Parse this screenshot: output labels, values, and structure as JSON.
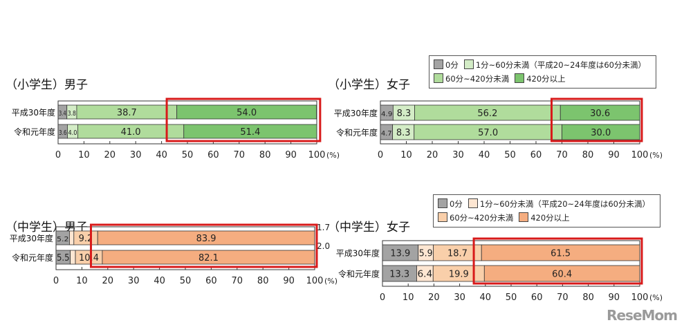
{
  "chart_data": [
    {
      "type": "bar",
      "orientation": "horizontal",
      "stacked": true,
      "title": "（小学生）男子",
      "categories": [
        "平成30年度",
        "令和元年度"
      ],
      "series": [
        {
          "name": "0分",
          "values": [
            3.4,
            3.6
          ]
        },
        {
          "name": "1分~60分未満",
          "values": [
            3.8,
            4.0
          ]
        },
        {
          "name": "60分~420分未満",
          "values": [
            38.7,
            41.0
          ]
        },
        {
          "name": "420分以上",
          "values": [
            54.0,
            51.4
          ]
        }
      ],
      "colors": [
        "#a3a3a3",
        "#d3ecc6",
        "#b0dc9c",
        "#7cc46e"
      ],
      "xlim": [
        0,
        100
      ],
      "xticks": [
        0,
        10,
        20,
        30,
        40,
        50,
        60,
        70,
        80,
        90,
        100
      ],
      "xunit": "(%)",
      "highlight_range": [
        42,
        100.5
      ],
      "legend": null
    },
    {
      "type": "bar",
      "orientation": "horizontal",
      "stacked": true,
      "title": "（小学生）女子",
      "categories": [
        "平成30年度",
        "令和元年度"
      ],
      "series": [
        {
          "name": "0分",
          "values": [
            4.9,
            4.7
          ]
        },
        {
          "name": "1分~60分未満",
          "values": [
            8.3,
            8.3
          ]
        },
        {
          "name": "60分~420分未満",
          "values": [
            56.2,
            57.0
          ]
        },
        {
          "name": "420分以上",
          "values": [
            30.6,
            30.0
          ]
        }
      ],
      "colors": [
        "#a3a3a3",
        "#d3ecc6",
        "#b0dc9c",
        "#7cc46e"
      ],
      "xlim": [
        0,
        100
      ],
      "xticks": [
        0,
        10,
        20,
        30,
        40,
        50,
        60,
        70,
        80,
        90,
        100
      ],
      "xunit": "(%)",
      "highlight_range": [
        66,
        100
      ],
      "legend": [
        "0分",
        "1分~60分未満（平成20~24年度は60分未満）",
        "60分~420分未満",
        "420分以上"
      ]
    },
    {
      "type": "bar",
      "orientation": "horizontal",
      "stacked": true,
      "title": "（中学生）男子",
      "categories": [
        "平成30年度",
        "令和元年度"
      ],
      "series": [
        {
          "name": "0分",
          "values": [
            5.2,
            5.5
          ]
        },
        {
          "name": "1分~60分未満",
          "values": [
            1.7,
            2.0
          ]
        },
        {
          "name": "60分~420分未満",
          "values": [
            9.2,
            10.4
          ]
        },
        {
          "name": "420分以上",
          "values": [
            83.9,
            82.1
          ]
        }
      ],
      "colors": [
        "#a3a3a3",
        "#fde6d2",
        "#f9cfaa",
        "#f5ad80"
      ],
      "xlim": [
        0,
        100
      ],
      "xticks": [
        0,
        10,
        20,
        30,
        40,
        50,
        60,
        70,
        80,
        90,
        100
      ],
      "xunit": "(%)",
      "highlight_range": [
        13.5,
        100
      ],
      "legend": null
    },
    {
      "type": "bar",
      "orientation": "horizontal",
      "stacked": true,
      "title": "（中学生）女子",
      "categories": [
        "平成30年度",
        "令和元年度"
      ],
      "series": [
        {
          "name": "0分",
          "values": [
            13.9,
            13.3
          ]
        },
        {
          "name": "1分~60分未満",
          "values": [
            5.9,
            6.4
          ]
        },
        {
          "name": "60分~420分未満",
          "values": [
            18.7,
            19.9
          ]
        },
        {
          "name": "420分以上",
          "values": [
            61.5,
            60.4
          ]
        }
      ],
      "colors": [
        "#a3a3a3",
        "#fde6d2",
        "#f9cfaa",
        "#f5ad80"
      ],
      "xlim": [
        0,
        100
      ],
      "xticks": [
        0,
        10,
        20,
        30,
        40,
        50,
        60,
        70,
        80,
        90,
        100
      ],
      "xunit": "(%)",
      "highlight_range": [
        35.5,
        100
      ],
      "legend": [
        "0分",
        "1分~60分未満（平成20~24年度は60分未満）",
        "60分~420分未満",
        "420分以上"
      ]
    }
  ],
  "watermark": "ReseMom"
}
